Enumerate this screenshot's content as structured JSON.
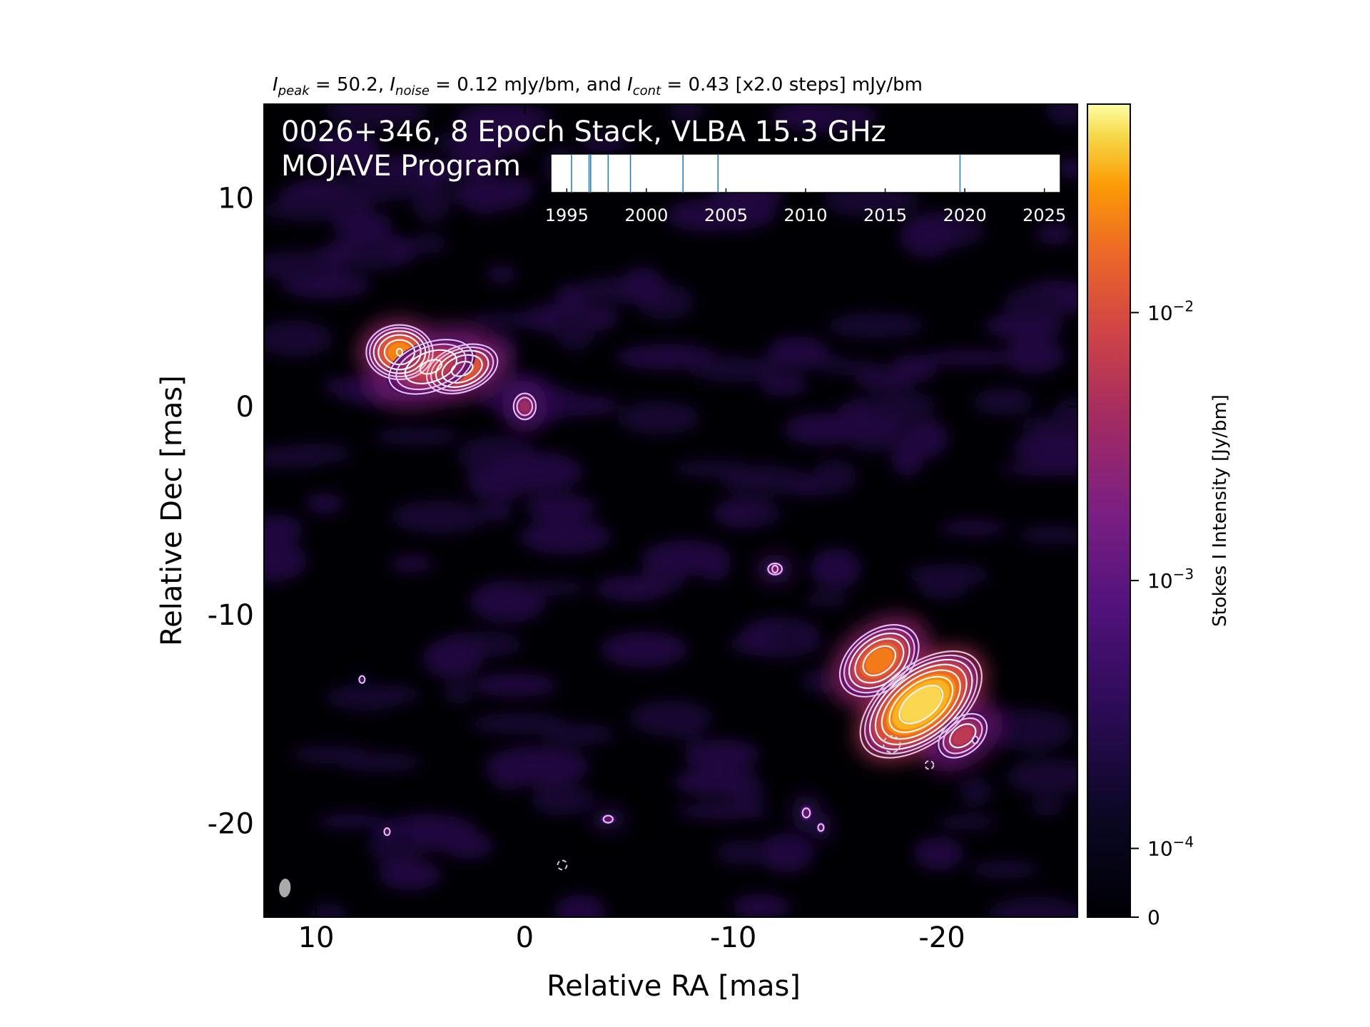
{
  "chart_data": {
    "type": "heatmap",
    "title_parts": {
      "peak_sym": "I",
      "peak_sub": "peak",
      "peak_val": " = 50.2, ",
      "noise_sym": "I",
      "noise_sub": "noise",
      "noise_val": " = 0.12 mJy/bm, and ",
      "cont_sym": "I",
      "cont_sub": "cont",
      "cont_val": " = 0.43 [x2.0 steps] mJy/bm"
    },
    "annotation_line1": "0026+346, 8 Epoch Stack, VLBA 15.3 GHz",
    "annotation_line2": "MOJAVE Program",
    "xlabel": "Relative RA [mas]",
    "ylabel": "Relative Dec [mas]",
    "xlim": [
      12.5,
      -26.5
    ],
    "ylim": [
      -24.5,
      14.5
    ],
    "x_ticks": [
      {
        "value": 10,
        "label": "10"
      },
      {
        "value": 0,
        "label": "0"
      },
      {
        "value": -10,
        "label": "-10"
      },
      {
        "value": -20,
        "label": "-20"
      }
    ],
    "y_ticks": [
      {
        "value": 10,
        "label": "10"
      },
      {
        "value": 0,
        "label": "0"
      },
      {
        "value": -10,
        "label": "-10"
      },
      {
        "value": -20,
        "label": "-20"
      }
    ],
    "colormap": "inferno",
    "colors": {
      "background": "#000004",
      "contour": "#ffffff",
      "beam": "#aaaaaa"
    },
    "colorbar": {
      "label": "Stokes I Intensity [Jy/bm]",
      "scale": "log",
      "range": [
        0,
        0.0502
      ],
      "ticks": [
        {
          "value": 0,
          "base": "0",
          "exp": ""
        },
        {
          "value": 0.0001,
          "base": "10",
          "exp": "−4"
        },
        {
          "value": 0.001,
          "base": "10",
          "exp": "−3"
        },
        {
          "value": 0.01,
          "base": "10",
          "exp": "−2"
        }
      ]
    },
    "epoch_timeline": {
      "range": [
        1994,
        2026
      ],
      "ticks": [
        {
          "value": 1995,
          "label": "1995"
        },
        {
          "value": 2000,
          "label": "2000"
        },
        {
          "value": 2005,
          "label": "2005"
        },
        {
          "value": 2010,
          "label": "2010"
        },
        {
          "value": 2015,
          "label": "2015"
        },
        {
          "value": 2020,
          "label": "2020"
        },
        {
          "value": 2025,
          "label": "2025"
        }
      ],
      "epochs": [
        1995.3,
        1996.4,
        1996.5,
        1997.6,
        1999.0,
        2002.3,
        2004.5,
        2019.7
      ]
    },
    "sources": [
      {
        "x": 6.0,
        "y": 2.6,
        "peak": 0.014,
        "sx": 1.1,
        "sy": 0.9,
        "pa": 0
      },
      {
        "x": 3.0,
        "y": 1.8,
        "peak": 0.009,
        "sx": 1.3,
        "sy": 0.8,
        "pa": -20
      },
      {
        "x": 4.5,
        "y": 1.9,
        "peak": 0.004,
        "sx": 1.8,
        "sy": 1.0,
        "pa": -20
      },
      {
        "x": 0.0,
        "y": 0.0,
        "peak": 0.0016,
        "sx": 0.6,
        "sy": 0.7,
        "pa": 0
      },
      {
        "x": -12.0,
        "y": -7.8,
        "peak": 0.0009,
        "sx": 0.5,
        "sy": 0.4,
        "pa": 0
      },
      {
        "x": -19.0,
        "y": -14.3,
        "peak": 0.0502,
        "sx": 2.0,
        "sy": 1.1,
        "pa": -38
      },
      {
        "x": -17.0,
        "y": -12.2,
        "peak": 0.012,
        "sx": 1.5,
        "sy": 1.0,
        "pa": -38
      },
      {
        "x": -21.0,
        "y": -15.8,
        "peak": 0.003,
        "sx": 1.2,
        "sy": 0.8,
        "pa": -38
      },
      {
        "x": -4.0,
        "y": -19.8,
        "peak": 0.0006,
        "sx": 0.5,
        "sy": 0.3,
        "pa": 0
      },
      {
        "x": -13.5,
        "y": -19.5,
        "peak": 0.0006,
        "sx": 0.4,
        "sy": 0.5,
        "pa": 0
      },
      {
        "x": -14.2,
        "y": -20.2,
        "peak": 0.0005,
        "sx": 0.3,
        "sy": 0.4,
        "pa": 0
      },
      {
        "x": 7.8,
        "y": -13.1,
        "peak": 0.0005,
        "sx": 0.15,
        "sy": 0.15,
        "pa": 0
      },
      {
        "x": 6.6,
        "y": -20.4,
        "peak": 0.0005,
        "sx": 0.15,
        "sy": 0.2,
        "pa": 0
      },
      {
        "x": -21.6,
        "y": -16.0,
        "peak": 0.0005,
        "sx": 0.15,
        "sy": 0.15,
        "pa": 0
      }
    ],
    "negative_contours": [
      {
        "x": -17.6,
        "y": -16.2,
        "r": 0.4
      },
      {
        "x": -19.4,
        "y": -17.2,
        "r": 0.2
      },
      {
        "x": -1.8,
        "y": -22.0,
        "r": 0.22
      }
    ],
    "beam": {
      "x": 11.5,
      "y": -23.1,
      "major": 0.9,
      "minor": 0.55,
      "pa": 5
    }
  }
}
